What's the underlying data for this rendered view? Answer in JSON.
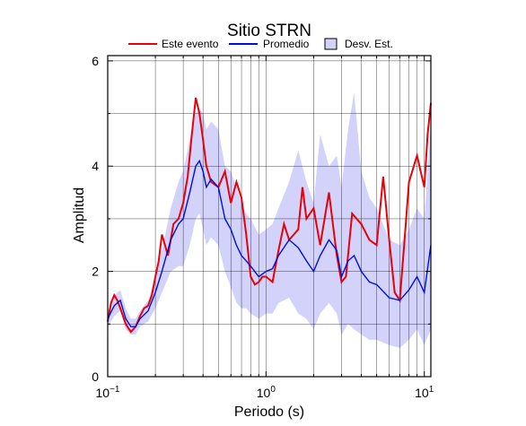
{
  "chart_data": {
    "type": "line",
    "title": "Sitio STRN",
    "xlabel": "Periodo (s)",
    "ylabel": "Amplitud",
    "x_scale": "log",
    "xlim": [
      0.1,
      11
    ],
    "ylim": [
      0,
      6.1
    ],
    "x_ticks": [
      0.1,
      1,
      10
    ],
    "x_tick_labels": [
      {
        "base": "10",
        "exp": "−1"
      },
      {
        "base": "10",
        "exp": "0"
      },
      {
        "base": "10",
        "exp": "1"
      }
    ],
    "y_ticks": [
      0,
      2,
      4,
      6
    ],
    "y_tick_labels": [
      "0",
      "2",
      "4",
      "6"
    ],
    "grid": true,
    "legend_position": "top",
    "legend": [
      {
        "label": "Este evento",
        "kind": "line",
        "color": "#e8000b"
      },
      {
        "label": "Promedio",
        "kind": "line",
        "color": "#0010d8"
      },
      {
        "label": "Desv. Est.",
        "kind": "band",
        "color": "#d2d2fa"
      }
    ],
    "series": [
      {
        "name": "Este evento",
        "color": "#e8000b",
        "x": [
          0.1,
          0.105,
          0.11,
          0.115,
          0.12,
          0.13,
          0.14,
          0.15,
          0.16,
          0.17,
          0.18,
          0.19,
          0.2,
          0.21,
          0.22,
          0.23,
          0.24,
          0.25,
          0.26,
          0.28,
          0.3,
          0.32,
          0.34,
          0.36,
          0.38,
          0.4,
          0.42,
          0.45,
          0.5,
          0.55,
          0.6,
          0.65,
          0.7,
          0.75,
          0.8,
          0.85,
          0.9,
          0.95,
          1.0,
          1.1,
          1.2,
          1.3,
          1.4,
          1.5,
          1.6,
          1.7,
          1.8,
          2.0,
          2.2,
          2.5,
          2.8,
          3.0,
          3.2,
          3.5,
          4.0,
          4.5,
          5.0,
          5.5,
          6.0,
          6.5,
          7.0,
          7.5,
          8.0,
          9.0,
          10.0,
          10.5,
          11.0
        ],
        "y": [
          1.05,
          1.4,
          1.55,
          1.45,
          1.3,
          1.0,
          0.85,
          0.95,
          1.15,
          1.3,
          1.35,
          1.55,
          1.9,
          2.2,
          2.7,
          2.5,
          2.3,
          2.6,
          2.9,
          3.0,
          3.3,
          3.8,
          4.6,
          5.3,
          5.0,
          4.5,
          4.0,
          3.7,
          3.6,
          3.9,
          3.3,
          3.7,
          3.4,
          2.7,
          1.9,
          1.75,
          1.8,
          1.9,
          1.9,
          1.8,
          2.4,
          2.9,
          2.6,
          2.7,
          2.8,
          3.6,
          3.0,
          3.2,
          2.5,
          3.5,
          2.3,
          1.8,
          1.9,
          3.1,
          2.9,
          2.6,
          2.5,
          3.8,
          2.6,
          1.6,
          1.45,
          2.6,
          3.7,
          4.2,
          3.6,
          4.6,
          5.2
        ]
      },
      {
        "name": "Promedio",
        "color": "#0010d8",
        "x": [
          0.1,
          0.11,
          0.12,
          0.13,
          0.14,
          0.15,
          0.16,
          0.18,
          0.2,
          0.22,
          0.25,
          0.28,
          0.3,
          0.33,
          0.36,
          0.38,
          0.4,
          0.42,
          0.45,
          0.5,
          0.55,
          0.6,
          0.65,
          0.7,
          0.75,
          0.8,
          0.9,
          1.0,
          1.1,
          1.2,
          1.4,
          1.6,
          1.8,
          2.0,
          2.2,
          2.5,
          2.8,
          3.0,
          3.3,
          3.6,
          4.0,
          4.5,
          5.0,
          6.0,
          7.0,
          8.0,
          9.0,
          10.0,
          11.0
        ],
        "y": [
          1.1,
          1.35,
          1.45,
          1.1,
          0.95,
          0.95,
          1.1,
          1.25,
          1.6,
          2.0,
          2.6,
          2.9,
          3.0,
          3.5,
          4.0,
          4.1,
          3.9,
          3.6,
          3.75,
          3.6,
          3.0,
          2.8,
          2.5,
          2.3,
          2.2,
          2.1,
          1.9,
          2.0,
          2.05,
          2.3,
          2.6,
          2.45,
          2.2,
          2.0,
          2.3,
          2.6,
          2.4,
          1.9,
          2.2,
          2.3,
          2.0,
          1.8,
          1.75,
          1.5,
          1.45,
          1.65,
          1.9,
          1.6,
          2.5
        ]
      }
    ],
    "band": {
      "name": "Desv. Est.",
      "color": "#d2d2fa",
      "x": [
        0.1,
        0.11,
        0.12,
        0.13,
        0.14,
        0.15,
        0.16,
        0.18,
        0.2,
        0.22,
        0.25,
        0.28,
        0.3,
        0.33,
        0.36,
        0.38,
        0.4,
        0.42,
        0.45,
        0.5,
        0.55,
        0.6,
        0.65,
        0.7,
        0.75,
        0.8,
        0.9,
        1.0,
        1.1,
        1.2,
        1.4,
        1.6,
        1.8,
        2.0,
        2.2,
        2.5,
        2.8,
        3.0,
        3.3,
        3.6,
        4.0,
        4.5,
        5.0,
        6.0,
        7.0,
        8.0,
        9.0,
        10.0,
        11.0
      ],
      "upper": [
        1.25,
        1.55,
        1.65,
        1.3,
        1.1,
        1.1,
        1.25,
        1.45,
        1.9,
        2.4,
        3.2,
        3.7,
        3.9,
        4.5,
        5.0,
        5.1,
        5.0,
        4.7,
        4.85,
        4.7,
        4.0,
        3.9,
        3.6,
        3.3,
        3.1,
        3.0,
        2.7,
        2.8,
        2.9,
        3.2,
        3.7,
        4.3,
        3.7,
        3.3,
        4.6,
        4.0,
        4.2,
        3.6,
        4.7,
        5.4,
        3.9,
        3.4,
        3.2,
        2.6,
        2.5,
        2.8,
        3.2,
        3.0,
        4.8
      ],
      "lower": [
        0.95,
        1.15,
        1.25,
        0.9,
        0.8,
        0.8,
        0.95,
        1.05,
        1.3,
        1.6,
        2.0,
        2.1,
        2.1,
        2.5,
        3.0,
        3.1,
        2.8,
        2.5,
        2.65,
        2.5,
        2.0,
        1.7,
        1.4,
        1.3,
        1.3,
        1.2,
        1.1,
        1.2,
        1.2,
        1.4,
        1.5,
        1.2,
        1.1,
        0.9,
        1.2,
        1.4,
        1.2,
        0.8,
        1.0,
        0.9,
        0.8,
        0.7,
        0.7,
        0.6,
        0.55,
        0.7,
        0.9,
        0.6,
        0.9
      ]
    }
  }
}
